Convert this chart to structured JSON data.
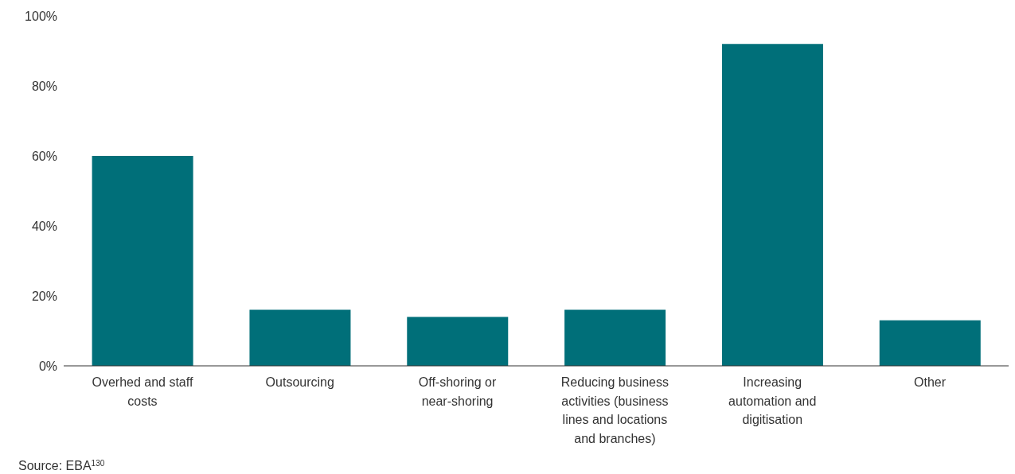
{
  "chart_data": {
    "type": "bar",
    "categories": [
      "Overhed and staff costs",
      "Outsourcing",
      "Off-shoring or near-shoring",
      "Reducing business activities (business lines and locations and branches)",
      "Increasing automation and digitisation",
      "Other"
    ],
    "values": [
      60,
      16,
      14,
      16,
      92,
      13
    ],
    "color": "#006f79",
    "ylim": [
      0,
      100
    ],
    "yticks": [
      {
        "value": 0,
        "label": "0%"
      },
      {
        "value": 20,
        "label": "20%"
      },
      {
        "value": 40,
        "label": "40%"
      },
      {
        "value": 60,
        "label": "60%"
      },
      {
        "value": 80,
        "label": "80%"
      },
      {
        "value": 100,
        "label": "100%"
      }
    ],
    "grid": false,
    "annotations": [
      "Source: EBA$^{130}$"
    ]
  }
}
